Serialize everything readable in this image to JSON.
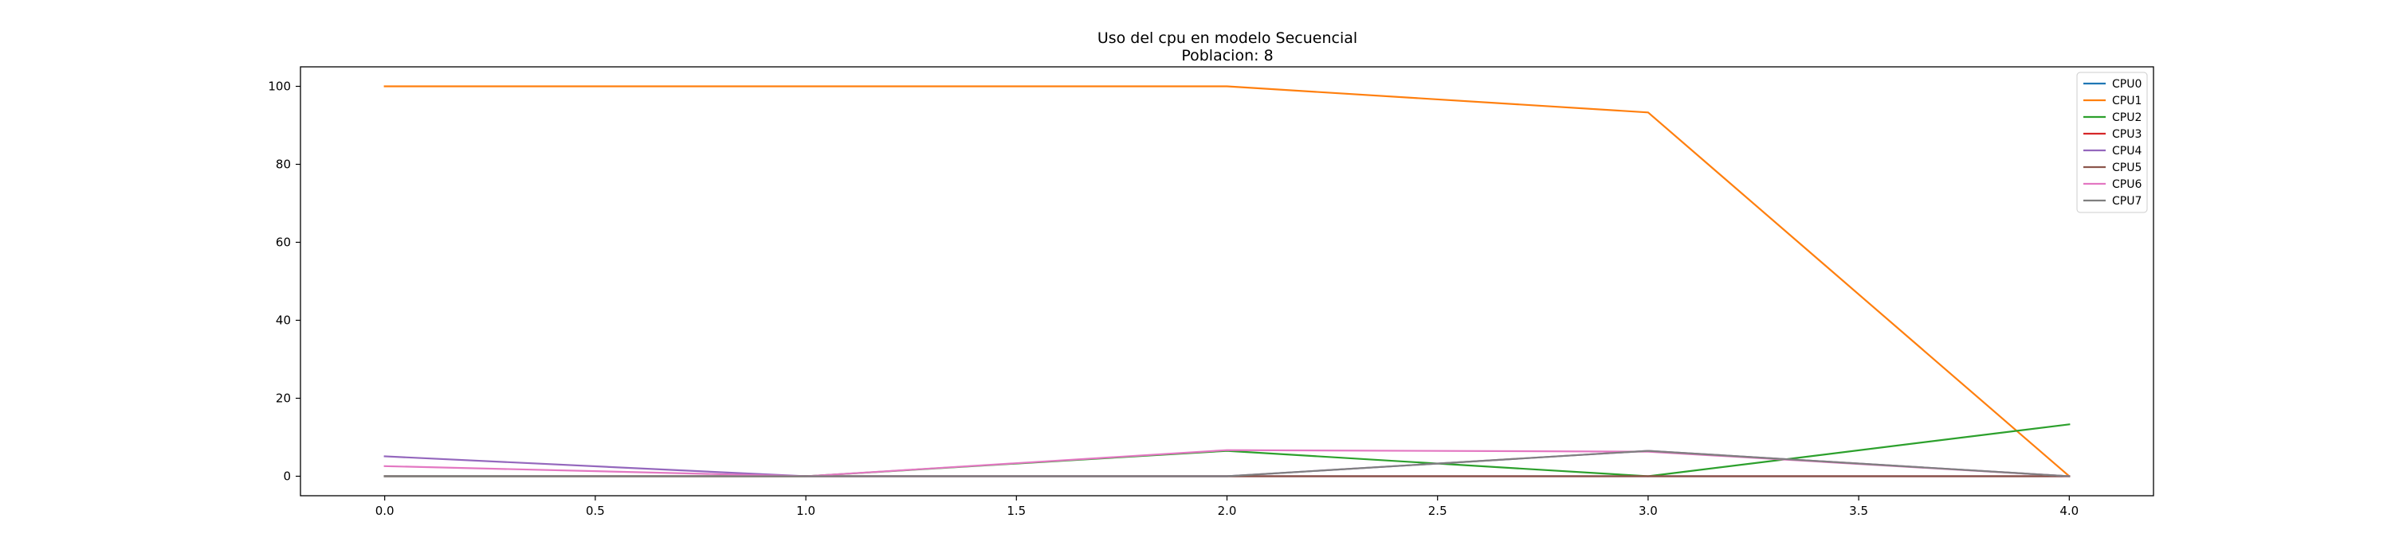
{
  "chart_data": {
    "type": "line",
    "title": "Uso del cpu en modelo Secuencial",
    "subtitle": "Poblacion: 8",
    "xlabel": "",
    "ylabel": "",
    "x": [
      0,
      1,
      2,
      3,
      4
    ],
    "xlim": [
      -0.2,
      4.2
    ],
    "ylim": [
      -5,
      105
    ],
    "xticks": [
      "0.0",
      "0.5",
      "1.0",
      "1.5",
      "2.0",
      "2.5",
      "3.0",
      "3.5",
      "4.0"
    ],
    "yticks": [
      "0",
      "20",
      "40",
      "60",
      "80",
      "100"
    ],
    "grid": false,
    "legend_position": "top-right",
    "series": [
      {
        "name": "CPU0",
        "color": "#1f77b4",
        "values": [
          0,
          0,
          0,
          0,
          0
        ]
      },
      {
        "name": "CPU1",
        "color": "#ff7f0e",
        "values": [
          100,
          100,
          100,
          93.3,
          0
        ]
      },
      {
        "name": "CPU2",
        "color": "#2ca02c",
        "values": [
          0,
          0,
          6.5,
          0,
          13.3
        ]
      },
      {
        "name": "CPU3",
        "color": "#d62728",
        "values": [
          0,
          0,
          0,
          0,
          0
        ]
      },
      {
        "name": "CPU4",
        "color": "#9467bd",
        "values": [
          5.1,
          0,
          0,
          6.5,
          0
        ]
      },
      {
        "name": "CPU5",
        "color": "#8c564b",
        "values": [
          0,
          0,
          0,
          0,
          0
        ]
      },
      {
        "name": "CPU6",
        "color": "#e377c2",
        "values": [
          2.6,
          0,
          6.7,
          6.3,
          0
        ]
      },
      {
        "name": "CPU7",
        "color": "#7f7f7f",
        "values": [
          0,
          0,
          0,
          6.5,
          0
        ]
      }
    ]
  }
}
